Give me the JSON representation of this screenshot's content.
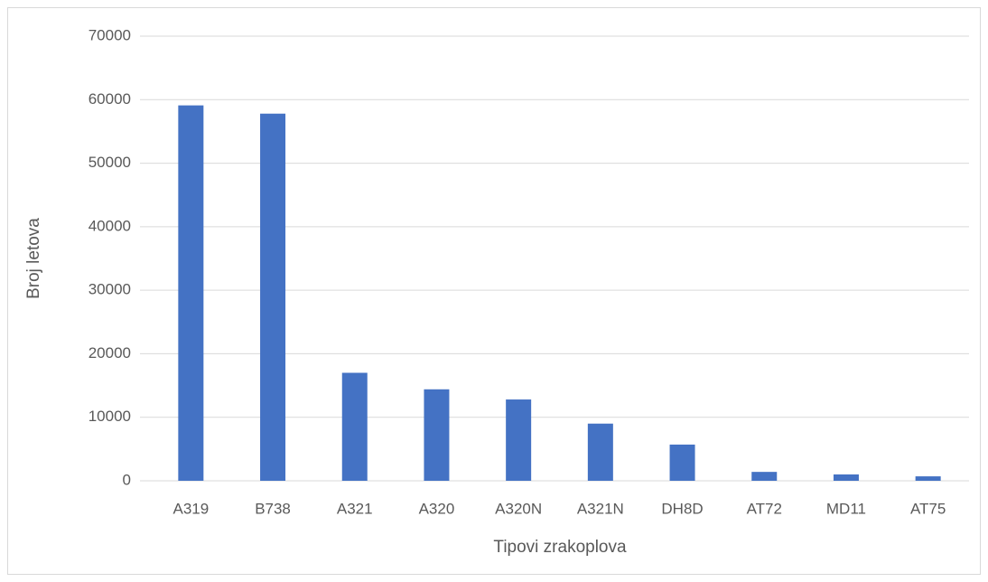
{
  "chart_data": {
    "type": "bar",
    "xlabel": "Tipovi zrakoplova",
    "ylabel": "Broj letova",
    "categories": [
      "A319",
      "B738",
      "A321",
      "A320",
      "A320N",
      "A321N",
      "DH8D",
      "AT72",
      "MD11",
      "AT75"
    ],
    "values": [
      59100,
      57800,
      17000,
      14400,
      12800,
      9000,
      5700,
      1400,
      1000,
      700
    ],
    "color": "#4472c4",
    "ylim": [
      0,
      70000
    ],
    "yticks": [
      0,
      10000,
      20000,
      30000,
      40000,
      50000,
      60000,
      70000
    ],
    "grid": true
  }
}
